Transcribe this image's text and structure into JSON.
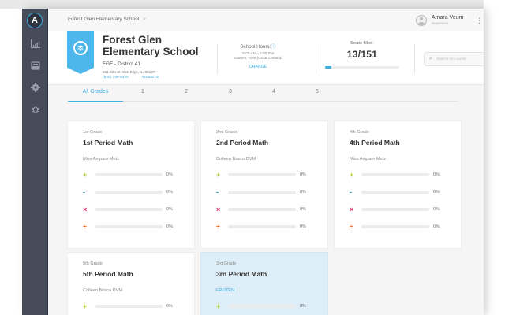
{
  "window": {
    "controls": [
      "close",
      "minimize",
      "maximize"
    ]
  },
  "sidebar": {
    "logo_letter": "A",
    "items": [
      {
        "name": "analytics",
        "icon": "bar-chart-icon"
      },
      {
        "name": "inbox",
        "icon": "inbox-tray-icon"
      },
      {
        "name": "settings",
        "icon": "gear-icon"
      },
      {
        "name": "debug",
        "icon": "bug-icon"
      }
    ]
  },
  "breadcrumb": {
    "label": "Forest Glen Elementary School",
    "separator": ">"
  },
  "user": {
    "name": "Amara Veum",
    "role": "Supervisor",
    "menu_icon": "⋮"
  },
  "school": {
    "name": "Forest Glen Elementary School",
    "code": "FGE - District 41",
    "address": "561 Elm St Glen Ellyn, IL, 60137",
    "phone": "(630) 790-6490",
    "website_label": "WEBSITE"
  },
  "hours": {
    "title": "School Hours:",
    "info_icon": "ⓘ",
    "time": "8:00 AM - 5:00 PM",
    "timezone": "Eastern Time (US & Canada)",
    "change_label": "CHANGE"
  },
  "seats": {
    "title": "Seats filled:",
    "count": "13/151",
    "percent": 8
  },
  "search": {
    "placeholder": "Search for course",
    "icon": "⌕"
  },
  "tabs": [
    {
      "label": "All Grades",
      "active": true
    },
    {
      "label": "1",
      "active": false
    },
    {
      "label": "2",
      "active": false
    },
    {
      "label": "3",
      "active": false
    },
    {
      "label": "4",
      "active": false
    },
    {
      "label": "5",
      "active": false
    }
  ],
  "operations": [
    {
      "symbol": "+",
      "name": "addition",
      "color": "#b5d334"
    },
    {
      "symbol": "-",
      "name": "subtraction",
      "color": "#1a9aa6"
    },
    {
      "symbol": "×",
      "name": "multiplication",
      "color": "#e0245e"
    },
    {
      "symbol": "÷",
      "name": "division",
      "color": "#f5793a"
    }
  ],
  "courses": [
    {
      "grade": "1st Grade",
      "title": "1st Period Math",
      "teacher": "Miss Amparo Metz",
      "progress": [
        "0%",
        "0%",
        "0%",
        "0%"
      ]
    },
    {
      "grade": "2nd Grade",
      "title": "2nd Period Math",
      "teacher": "Colleen Bosco DVM",
      "progress": [
        "0%",
        "0%",
        "0%",
        "0%"
      ]
    },
    {
      "grade": "4th Grade",
      "title": "4th Period Math",
      "teacher": "Miss Amparo Metz",
      "progress": [
        "0%",
        "0%",
        "0%",
        "0%"
      ]
    },
    {
      "grade": "5th Grade",
      "title": "5th Period Math",
      "teacher": "Colleen Bosco DVM",
      "progress": [
        "0%"
      ]
    },
    {
      "grade": "3rd Grade",
      "title": "3rd Period Math",
      "teacher": "FROZEN",
      "status": "frozen",
      "progress": [
        "0%"
      ]
    }
  ]
}
